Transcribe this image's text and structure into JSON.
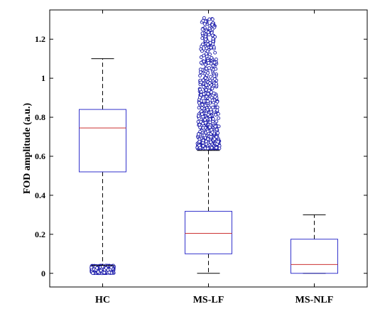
{
  "chart_data": {
    "type": "box",
    "xlabel": "",
    "ylabel": "FOD amplitude (a.u.)",
    "categories": [
      "HC",
      "MS-LF",
      "MS-NLF"
    ],
    "ylim": [
      -0.07,
      1.35
    ],
    "yticks": [
      0,
      0.2,
      0.4,
      0.6,
      0.8,
      1,
      1.2
    ],
    "ytick_labels": [
      "0",
      "0.2",
      "0.4",
      "0.6",
      "0.8",
      "1",
      "1.2"
    ],
    "grid": false,
    "boxes": [
      {
        "category": "HC",
        "whisker_low": 0.04,
        "q1": 0.52,
        "median": 0.745,
        "q3": 0.84,
        "whisker_high": 1.1,
        "outlier_range": [
          0.0,
          0.04
        ],
        "outlier_count": 400
      },
      {
        "category": "MS-LF",
        "whisker_low": 0.0,
        "q1": 0.1,
        "median": 0.205,
        "q3": 0.318,
        "whisker_high": 0.63,
        "outlier_range": [
          0.64,
          1.31
        ],
        "outlier_count": 650
      },
      {
        "category": "MS-NLF",
        "whisker_low": 0.0,
        "q1": 0.0,
        "median": 0.045,
        "q3": 0.175,
        "whisker_high": 0.3,
        "outlier_range": null,
        "outlier_count": 0
      }
    ],
    "colors": {
      "box": "#3333cc",
      "median": "#cc3333",
      "whisker": "#000000",
      "outlier": "#1a1aaa"
    }
  }
}
